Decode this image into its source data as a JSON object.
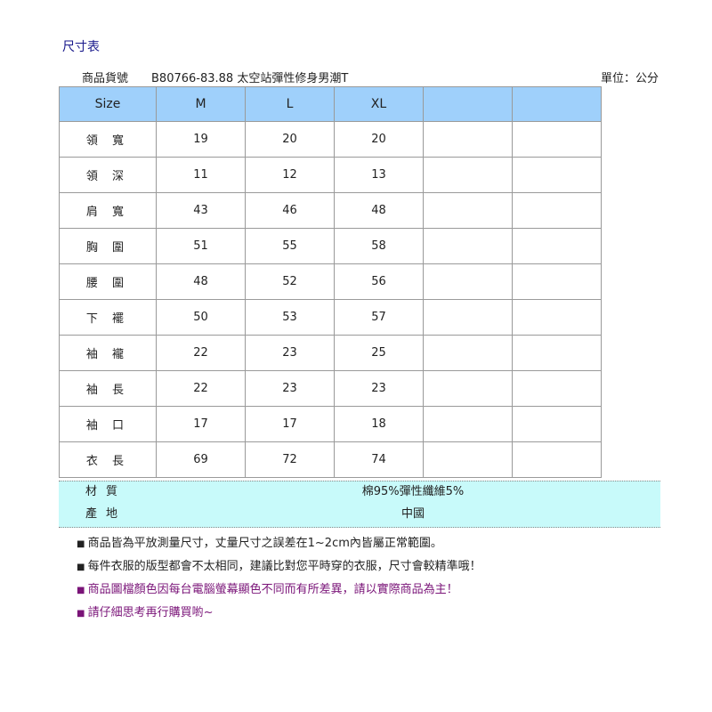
{
  "title": "尺寸表",
  "product": {
    "label": "商品貨號",
    "value": "B80766-83.88 太空站彈性修身男潮T",
    "unit": "單位：公分"
  },
  "table": {
    "headers": [
      "Size",
      "M",
      "L",
      "XL",
      "",
      ""
    ],
    "rows": [
      [
        "領 寬",
        "19",
        "20",
        "20",
        "",
        ""
      ],
      [
        "領 深",
        "11",
        "12",
        "13",
        "",
        ""
      ],
      [
        "肩 寬",
        "43",
        "46",
        "48",
        "",
        ""
      ],
      [
        "胸 圍",
        "51",
        "55",
        "58",
        "",
        ""
      ],
      [
        "腰 圍",
        "48",
        "52",
        "56",
        "",
        ""
      ],
      [
        "下 襬",
        "50",
        "53",
        "57",
        "",
        ""
      ],
      [
        "袖 襱",
        "22",
        "23",
        "25",
        "",
        ""
      ],
      [
        "袖 長",
        "22",
        "23",
        "23",
        "",
        ""
      ],
      [
        "袖 口",
        "17",
        "17",
        "18",
        "",
        ""
      ],
      [
        "衣 長",
        "69",
        "72",
        "74",
        "",
        ""
      ]
    ]
  },
  "info": [
    {
      "label": "材質",
      "value": "棉95%彈性纖維5%"
    },
    {
      "label": "產地",
      "value": "中國"
    }
  ],
  "notes": [
    {
      "text": "商品皆為平放測量尺寸，丈量尺寸之誤差在1~2cm內皆屬正常範圍。",
      "color": "#111111"
    },
    {
      "text": "每件衣服的版型都會不太相同，建議比對您平時穿的衣服，尺寸會較精準哦！",
      "color": "#111111"
    },
    {
      "text": "商品圖檔顏色因每台電腦螢幕顯色不同而有所差異，請以實際商品為主！",
      "color": "#7a1478"
    },
    {
      "text": "請仔細思考再行購買喲~",
      "color": "#7a1478"
    }
  ]
}
